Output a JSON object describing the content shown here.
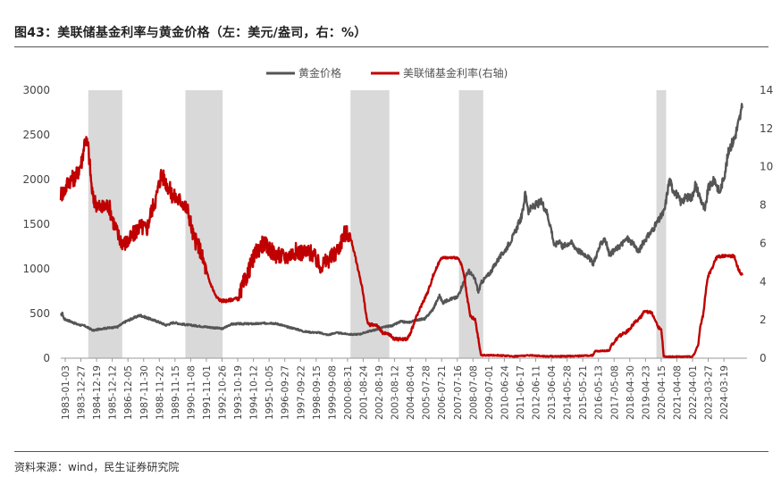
{
  "page": {
    "title": "图43：美联储基金利率与黄金价格（左：美元/盎司，右：%）",
    "source": "资料来源：wind，民生证券研究院"
  },
  "chart_data": {
    "type": "line",
    "x_ticks": [
      "1983-01-03",
      "1983-12-27",
      "1984-12-19",
      "1985-12-12",
      "1986-12-05",
      "1987-11-30",
      "1988-11-22",
      "1989-11-15",
      "1990-11-08",
      "1991-11-01",
      "1992-10-26",
      "1993-10-19",
      "1994-10-12",
      "1995-10-05",
      "1996-09-27",
      "1997-09-22",
      "1998-09-15",
      "1999-09-08",
      "2000-08-31",
      "2001-08-24",
      "2002-08-19",
      "2003-08-12",
      "2004-08-04",
      "2005-07-28",
      "2006-07-21",
      "2007-07-16",
      "2008-07-08",
      "2009-07-01",
      "2010-06-24",
      "2011-06-17",
      "2012-06-11",
      "2013-06-04",
      "2014-05-28",
      "2015-05-21",
      "2016-05-13",
      "2017-05-08",
      "2018-04-30",
      "2019-04-23",
      "2020-04-15",
      "2021-04-08",
      "2022-04-01",
      "2023-03-27",
      "2024-03-19"
    ],
    "y_left": {
      "min": 0,
      "max": 3000,
      "ticks": [
        0,
        500,
        1000,
        1500,
        2000,
        2500,
        3000
      ]
    },
    "y_right": {
      "min": 0,
      "max": 14,
      "ticks": [
        0,
        2,
        4,
        6,
        8,
        10,
        12,
        14
      ]
    },
    "legend": {
      "position": "top-center"
    },
    "recessions": [
      [
        1984.7,
        1986.8
      ],
      [
        1990.7,
        1993.0
      ],
      [
        2000.9,
        2003.3
      ],
      [
        2007.6,
        2009.1
      ],
      [
        2019.8,
        2020.4
      ]
    ],
    "series": [
      {
        "name": "黄金价格",
        "axis": "left",
        "color": "#555555",
        "points": [
          [
            1983.0,
            480
          ],
          [
            1983.1,
            500
          ],
          [
            1983.2,
            440
          ],
          [
            1983.5,
            420
          ],
          [
            1984.0,
            380
          ],
          [
            1984.5,
            360
          ],
          [
            1985.0,
            310
          ],
          [
            1985.5,
            330
          ],
          [
            1986.0,
            340
          ],
          [
            1986.5,
            350
          ],
          [
            1987.0,
            410
          ],
          [
            1987.5,
            450
          ],
          [
            1987.9,
            480
          ],
          [
            1988.2,
            460
          ],
          [
            1988.5,
            440
          ],
          [
            1989.0,
            410
          ],
          [
            1989.5,
            370
          ],
          [
            1990.0,
            400
          ],
          [
            1990.5,
            380
          ],
          [
            1991.0,
            370
          ],
          [
            1991.5,
            360
          ],
          [
            1992.0,
            350
          ],
          [
            1992.5,
            340
          ],
          [
            1993.0,
            330
          ],
          [
            1993.5,
            380
          ],
          [
            1994.0,
            385
          ],
          [
            1995.0,
            385
          ],
          [
            1996.0,
            395
          ],
          [
            1996.5,
            380
          ],
          [
            1997.0,
            350
          ],
          [
            1997.5,
            330
          ],
          [
            1998.0,
            300
          ],
          [
            1998.5,
            290
          ],
          [
            1999.0,
            285
          ],
          [
            1999.5,
            260
          ],
          [
            2000.0,
            285
          ],
          [
            2000.5,
            275
          ],
          [
            2001.0,
            265
          ],
          [
            2001.5,
            270
          ],
          [
            2002.0,
            300
          ],
          [
            2002.5,
            320
          ],
          [
            2003.0,
            350
          ],
          [
            2003.5,
            365
          ],
          [
            2004.0,
            410
          ],
          [
            2004.5,
            400
          ],
          [
            2005.0,
            430
          ],
          [
            2005.5,
            440
          ],
          [
            2006.0,
            550
          ],
          [
            2006.4,
            700
          ],
          [
            2006.6,
            620
          ],
          [
            2007.0,
            660
          ],
          [
            2007.5,
            680
          ],
          [
            2008.0,
            900
          ],
          [
            2008.2,
            980
          ],
          [
            2008.6,
            880
          ],
          [
            2008.8,
            740
          ],
          [
            2009.0,
            850
          ],
          [
            2009.5,
            950
          ],
          [
            2010.0,
            1100
          ],
          [
            2010.5,
            1220
          ],
          [
            2011.0,
            1380
          ],
          [
            2011.5,
            1600
          ],
          [
            2011.7,
            1850
          ],
          [
            2011.9,
            1650
          ],
          [
            2012.2,
            1700
          ],
          [
            2012.7,
            1750
          ],
          [
            2013.0,
            1650
          ],
          [
            2013.3,
            1450
          ],
          [
            2013.5,
            1250
          ],
          [
            2013.8,
            1320
          ],
          [
            2014.0,
            1250
          ],
          [
            2014.5,
            1300
          ],
          [
            2015.0,
            1200
          ],
          [
            2015.5,
            1150
          ],
          [
            2015.9,
            1060
          ],
          [
            2016.3,
            1250
          ],
          [
            2016.6,
            1350
          ],
          [
            2016.9,
            1160
          ],
          [
            2017.5,
            1250
          ],
          [
            2018.0,
            1340
          ],
          [
            2018.5,
            1250
          ],
          [
            2018.7,
            1190
          ],
          [
            2019.0,
            1300
          ],
          [
            2019.5,
            1420
          ],
          [
            2020.0,
            1560
          ],
          [
            2020.3,
            1650
          ],
          [
            2020.6,
            2000
          ],
          [
            2020.8,
            1900
          ],
          [
            2021.0,
            1850
          ],
          [
            2021.3,
            1750
          ],
          [
            2021.6,
            1800
          ],
          [
            2022.0,
            1800
          ],
          [
            2022.2,
            1950
          ],
          [
            2022.6,
            1750
          ],
          [
            2022.8,
            1650
          ],
          [
            2023.0,
            1900
          ],
          [
            2023.4,
            2000
          ],
          [
            2023.7,
            1850
          ],
          [
            2024.0,
            2050
          ],
          [
            2024.3,
            2350
          ],
          [
            2024.6,
            2450
          ],
          [
            2024.9,
            2650
          ],
          [
            2025.1,
            2800
          ]
        ]
      },
      {
        "name": "美联储基金利率(右轴)",
        "axis": "right",
        "color": "#c00000",
        "points": [
          [
            1983.0,
            8.6
          ],
          [
            1983.2,
            8.7
          ],
          [
            1983.5,
            9.3
          ],
          [
            1983.8,
            9.4
          ],
          [
            1984.0,
            9.6
          ],
          [
            1984.3,
            10.3
          ],
          [
            1984.5,
            11.5
          ],
          [
            1984.7,
            11.0
          ],
          [
            1984.9,
            9.0
          ],
          [
            1985.0,
            8.3
          ],
          [
            1985.5,
            7.8
          ],
          [
            1985.9,
            8.0
          ],
          [
            1986.0,
            7.9
          ],
          [
            1986.3,
            7.0
          ],
          [
            1986.6,
            6.3
          ],
          [
            1986.9,
            6.0
          ],
          [
            1987.2,
            6.1
          ],
          [
            1987.6,
            6.6
          ],
          [
            1987.9,
            6.9
          ],
          [
            1988.3,
            6.7
          ],
          [
            1988.6,
            7.7
          ],
          [
            1988.9,
            8.4
          ],
          [
            1989.2,
            9.6
          ],
          [
            1989.5,
            9.2
          ],
          [
            1989.9,
            8.5
          ],
          [
            1990.2,
            8.3
          ],
          [
            1990.5,
            8.2
          ],
          [
            1990.9,
            7.6
          ],
          [
            1991.2,
            6.3
          ],
          [
            1991.6,
            5.7
          ],
          [
            1991.9,
            4.8
          ],
          [
            1992.2,
            4.0
          ],
          [
            1992.6,
            3.2
          ],
          [
            1992.9,
            3.0
          ],
          [
            1993.3,
            3.0
          ],
          [
            1993.7,
            3.1
          ],
          [
            1994.0,
            3.1
          ],
          [
            1994.2,
            3.7
          ],
          [
            1994.5,
            4.3
          ],
          [
            1994.8,
            5.0
          ],
          [
            1995.1,
            5.6
          ],
          [
            1995.5,
            6.0
          ],
          [
            1995.9,
            5.7
          ],
          [
            1996.3,
            5.4
          ],
          [
            1996.7,
            5.3
          ],
          [
            1997.0,
            5.3
          ],
          [
            1997.5,
            5.6
          ],
          [
            1998.0,
            5.5
          ],
          [
            1998.5,
            5.5
          ],
          [
            1998.8,
            5.1
          ],
          [
            1999.0,
            4.8
          ],
          [
            1999.5,
            5.1
          ],
          [
            1999.9,
            5.4
          ],
          [
            2000.2,
            5.8
          ],
          [
            2000.5,
            6.5
          ],
          [
            2000.8,
            6.5
          ],
          [
            2001.0,
            6.0
          ],
          [
            2001.3,
            4.9
          ],
          [
            2001.6,
            3.8
          ],
          [
            2001.9,
            2.1
          ],
          [
            2002.0,
            1.75
          ],
          [
            2002.5,
            1.75
          ],
          [
            2002.9,
            1.3
          ],
          [
            2003.3,
            1.25
          ],
          [
            2003.6,
            1.0
          ],
          [
            2004.0,
            1.0
          ],
          [
            2004.4,
            1.0
          ],
          [
            2004.6,
            1.3
          ],
          [
            2004.9,
            2.0
          ],
          [
            2005.3,
            2.8
          ],
          [
            2005.7,
            3.5
          ],
          [
            2006.0,
            4.3
          ],
          [
            2006.5,
            5.25
          ],
          [
            2007.0,
            5.25
          ],
          [
            2007.5,
            5.25
          ],
          [
            2007.7,
            5.0
          ],
          [
            2007.9,
            4.4
          ],
          [
            2008.1,
            3.2
          ],
          [
            2008.3,
            2.2
          ],
          [
            2008.6,
            2.0
          ],
          [
            2008.8,
            1.0
          ],
          [
            2008.95,
            0.2
          ],
          [
            2009.0,
            0.15
          ],
          [
            2009.5,
            0.15
          ],
          [
            2010.0,
            0.15
          ],
          [
            2011.0,
            0.1
          ],
          [
            2012.0,
            0.15
          ],
          [
            2013.0,
            0.1
          ],
          [
            2014.0,
            0.1
          ],
          [
            2015.0,
            0.12
          ],
          [
            2015.9,
            0.15
          ],
          [
            2016.0,
            0.37
          ],
          [
            2016.9,
            0.4
          ],
          [
            2017.0,
            0.66
          ],
          [
            2017.5,
            1.15
          ],
          [
            2018.0,
            1.4
          ],
          [
            2018.5,
            1.9
          ],
          [
            2018.9,
            2.2
          ],
          [
            2019.0,
            2.4
          ],
          [
            2019.5,
            2.4
          ],
          [
            2019.7,
            2.1
          ],
          [
            2019.9,
            1.6
          ],
          [
            2020.1,
            1.55
          ],
          [
            2020.25,
            0.1
          ],
          [
            2020.5,
            0.08
          ],
          [
            2021.0,
            0.08
          ],
          [
            2021.5,
            0.08
          ],
          [
            2022.0,
            0.08
          ],
          [
            2022.2,
            0.3
          ],
          [
            2022.4,
            0.8
          ],
          [
            2022.5,
            1.6
          ],
          [
            2022.7,
            2.3
          ],
          [
            2022.8,
            3.1
          ],
          [
            2022.9,
            3.8
          ],
          [
            2023.0,
            4.3
          ],
          [
            2023.2,
            4.6
          ],
          [
            2023.4,
            5.1
          ],
          [
            2023.6,
            5.33
          ],
          [
            2024.0,
            5.33
          ],
          [
            2024.6,
            5.33
          ],
          [
            2024.7,
            5.1
          ],
          [
            2024.8,
            4.8
          ],
          [
            2024.95,
            4.5
          ],
          [
            2025.1,
            4.33
          ]
        ]
      }
    ]
  }
}
